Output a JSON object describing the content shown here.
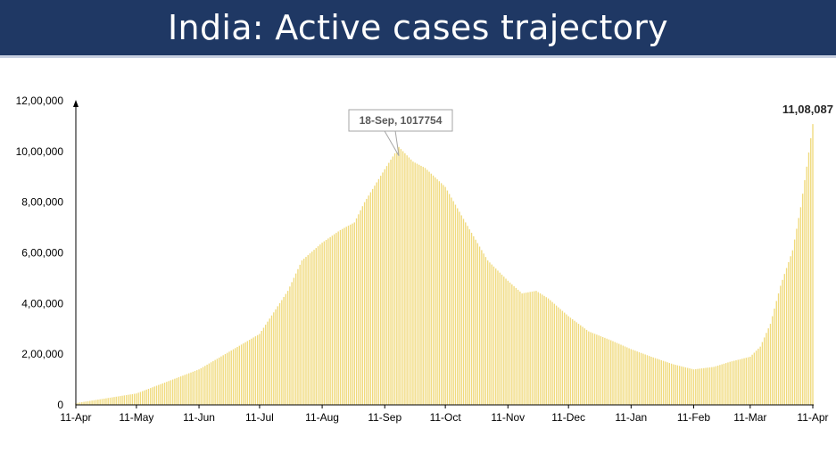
{
  "header": {
    "title": "India: Active cases trajectory"
  },
  "chart_data": {
    "type": "bar",
    "title": "India: Active cases trajectory",
    "xlabel": "",
    "ylabel": "",
    "ylim": [
      0,
      1200000
    ],
    "y_ticks": [
      0,
      200000,
      400000,
      600000,
      800000,
      1000000,
      1200000
    ],
    "y_tick_labels": [
      "0",
      "2,00,000",
      "4,00,000",
      "6,00,000",
      "8,00,000",
      "10,00,000",
      "12,00,000"
    ],
    "x_ticks": [
      "11-Apr",
      "11-May",
      "11-Jun",
      "11-Jul",
      "11-Aug",
      "11-Sep",
      "11-Oct",
      "11-Nov",
      "11-Dec",
      "11-Jan",
      "11-Feb",
      "11-Mar",
      "11-Apr"
    ],
    "grid": false,
    "legend": "none",
    "bar_color": "#f0da7d",
    "annotation_color": "#a6a6a6",
    "series": [
      {
        "frequency": "daily",
        "start": "11-Apr",
        "end": "11-Apr",
        "anchor_points": [
          {
            "date": "2020-04-11",
            "value": 7000
          },
          {
            "date": "2020-05-11",
            "value": 45000
          },
          {
            "date": "2020-06-11",
            "value": 140000
          },
          {
            "date": "2020-07-11",
            "value": 280000
          },
          {
            "date": "2020-07-25",
            "value": 450000
          },
          {
            "date": "2020-08-01",
            "value": 570000
          },
          {
            "date": "2020-08-11",
            "value": 640000
          },
          {
            "date": "2020-08-20",
            "value": 690000
          },
          {
            "date": "2020-08-27",
            "value": 720000
          },
          {
            "date": "2020-09-01",
            "value": 800000
          },
          {
            "date": "2020-09-11",
            "value": 930000
          },
          {
            "date": "2020-09-18",
            "value": 1017754
          },
          {
            "date": "2020-09-25",
            "value": 960000
          },
          {
            "date": "2020-10-01",
            "value": 935000
          },
          {
            "date": "2020-10-11",
            "value": 860000
          },
          {
            "date": "2020-10-21",
            "value": 720000
          },
          {
            "date": "2020-11-01",
            "value": 570000
          },
          {
            "date": "2020-11-11",
            "value": 490000
          },
          {
            "date": "2020-11-18",
            "value": 440000
          },
          {
            "date": "2020-11-25",
            "value": 450000
          },
          {
            "date": "2020-12-01",
            "value": 420000
          },
          {
            "date": "2020-12-11",
            "value": 350000
          },
          {
            "date": "2020-12-21",
            "value": 290000
          },
          {
            "date": "2021-01-01",
            "value": 255000
          },
          {
            "date": "2021-01-11",
            "value": 220000
          },
          {
            "date": "2021-01-21",
            "value": 190000
          },
          {
            "date": "2021-02-01",
            "value": 160000
          },
          {
            "date": "2021-02-11",
            "value": 140000
          },
          {
            "date": "2021-02-21",
            "value": 150000
          },
          {
            "date": "2021-03-01",
            "value": 170000
          },
          {
            "date": "2021-03-11",
            "value": 190000
          },
          {
            "date": "2021-03-16",
            "value": 230000
          },
          {
            "date": "2021-03-21",
            "value": 320000
          },
          {
            "date": "2021-03-26",
            "value": 470000
          },
          {
            "date": "2021-04-01",
            "value": 610000
          },
          {
            "date": "2021-04-05",
            "value": 780000
          },
          {
            "date": "2021-04-08",
            "value": 940000
          },
          {
            "date": "2021-04-11",
            "value": 1108087
          }
        ]
      }
    ],
    "annotations": [
      {
        "text": "18-Sep, 1017754",
        "date": "2020-09-18",
        "value": 1017754
      },
      {
        "text": "11,08,087",
        "date": "2021-04-11",
        "value": 1108087
      }
    ]
  }
}
